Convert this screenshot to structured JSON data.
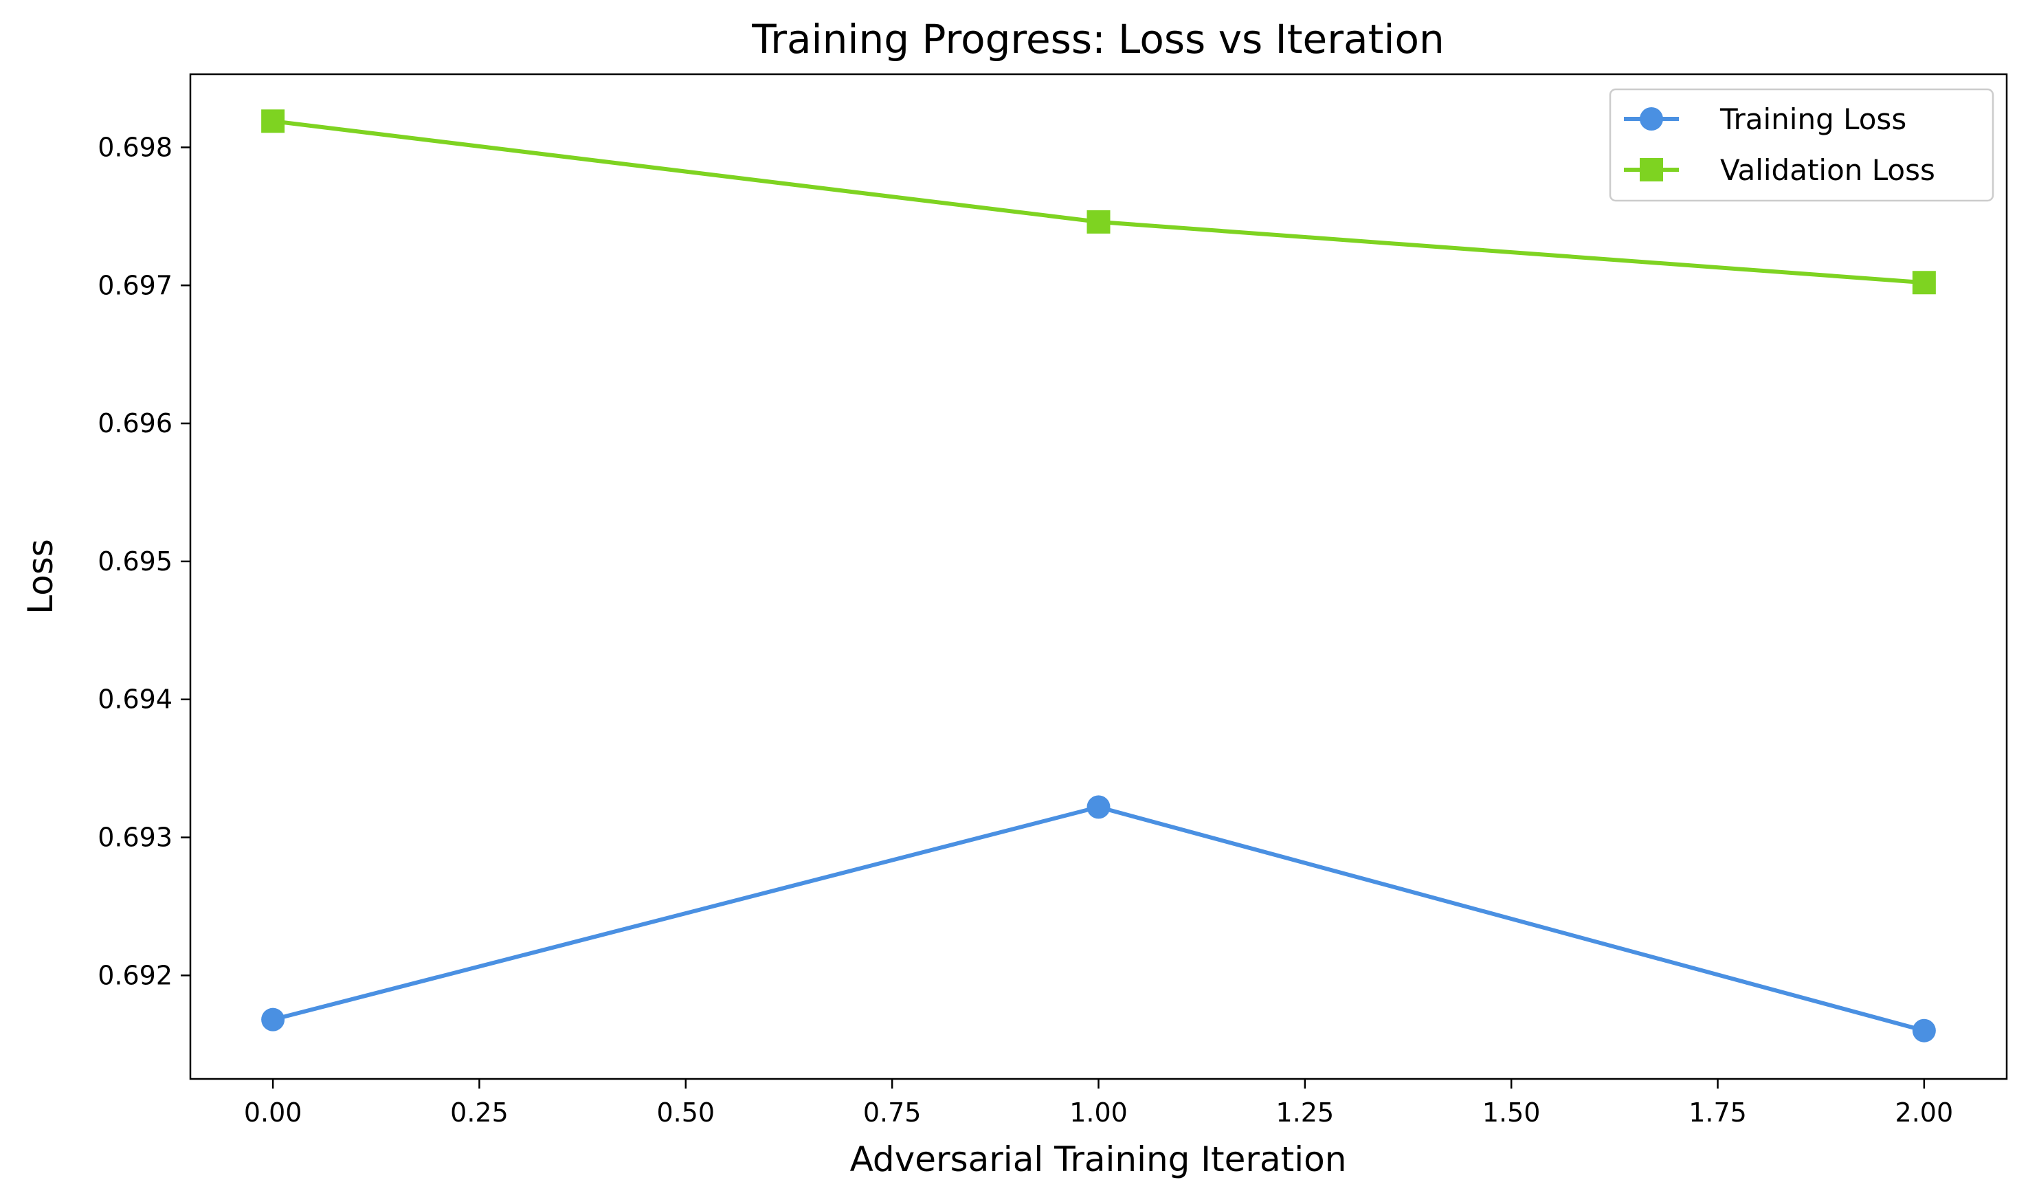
{
  "chart_data": {
    "type": "line",
    "title": "Training Progress: Loss vs Iteration",
    "xlabel": "Adversarial Training Iteration",
    "ylabel": "Loss",
    "x": [
      0,
      1,
      2
    ],
    "xlim": [
      -0.1,
      2.1
    ],
    "ylim": [
      0.69125,
      0.69853
    ],
    "xticks": [
      0.0,
      0.25,
      0.5,
      0.75,
      1.0,
      1.25,
      1.5,
      1.75,
      2.0
    ],
    "xtick_labels": [
      "0.00",
      "0.25",
      "0.50",
      "0.75",
      "1.00",
      "1.25",
      "1.50",
      "1.75",
      "2.00"
    ],
    "yticks": [
      0.692,
      0.693,
      0.694,
      0.695,
      0.696,
      0.697,
      0.698
    ],
    "ytick_labels": [
      "0.692",
      "0.693",
      "0.694",
      "0.695",
      "0.696",
      "0.697",
      "0.698"
    ],
    "grid": false,
    "legend_position": "top-right",
    "series": [
      {
        "name": "Training Loss",
        "values": [
          0.69168,
          0.69322,
          0.6916
        ],
        "color": "#4a90e2",
        "marker": "circle"
      },
      {
        "name": "Validation Loss",
        "values": [
          0.69819,
          0.69746,
          0.69702
        ],
        "color": "#7ed321",
        "marker": "square"
      }
    ]
  }
}
